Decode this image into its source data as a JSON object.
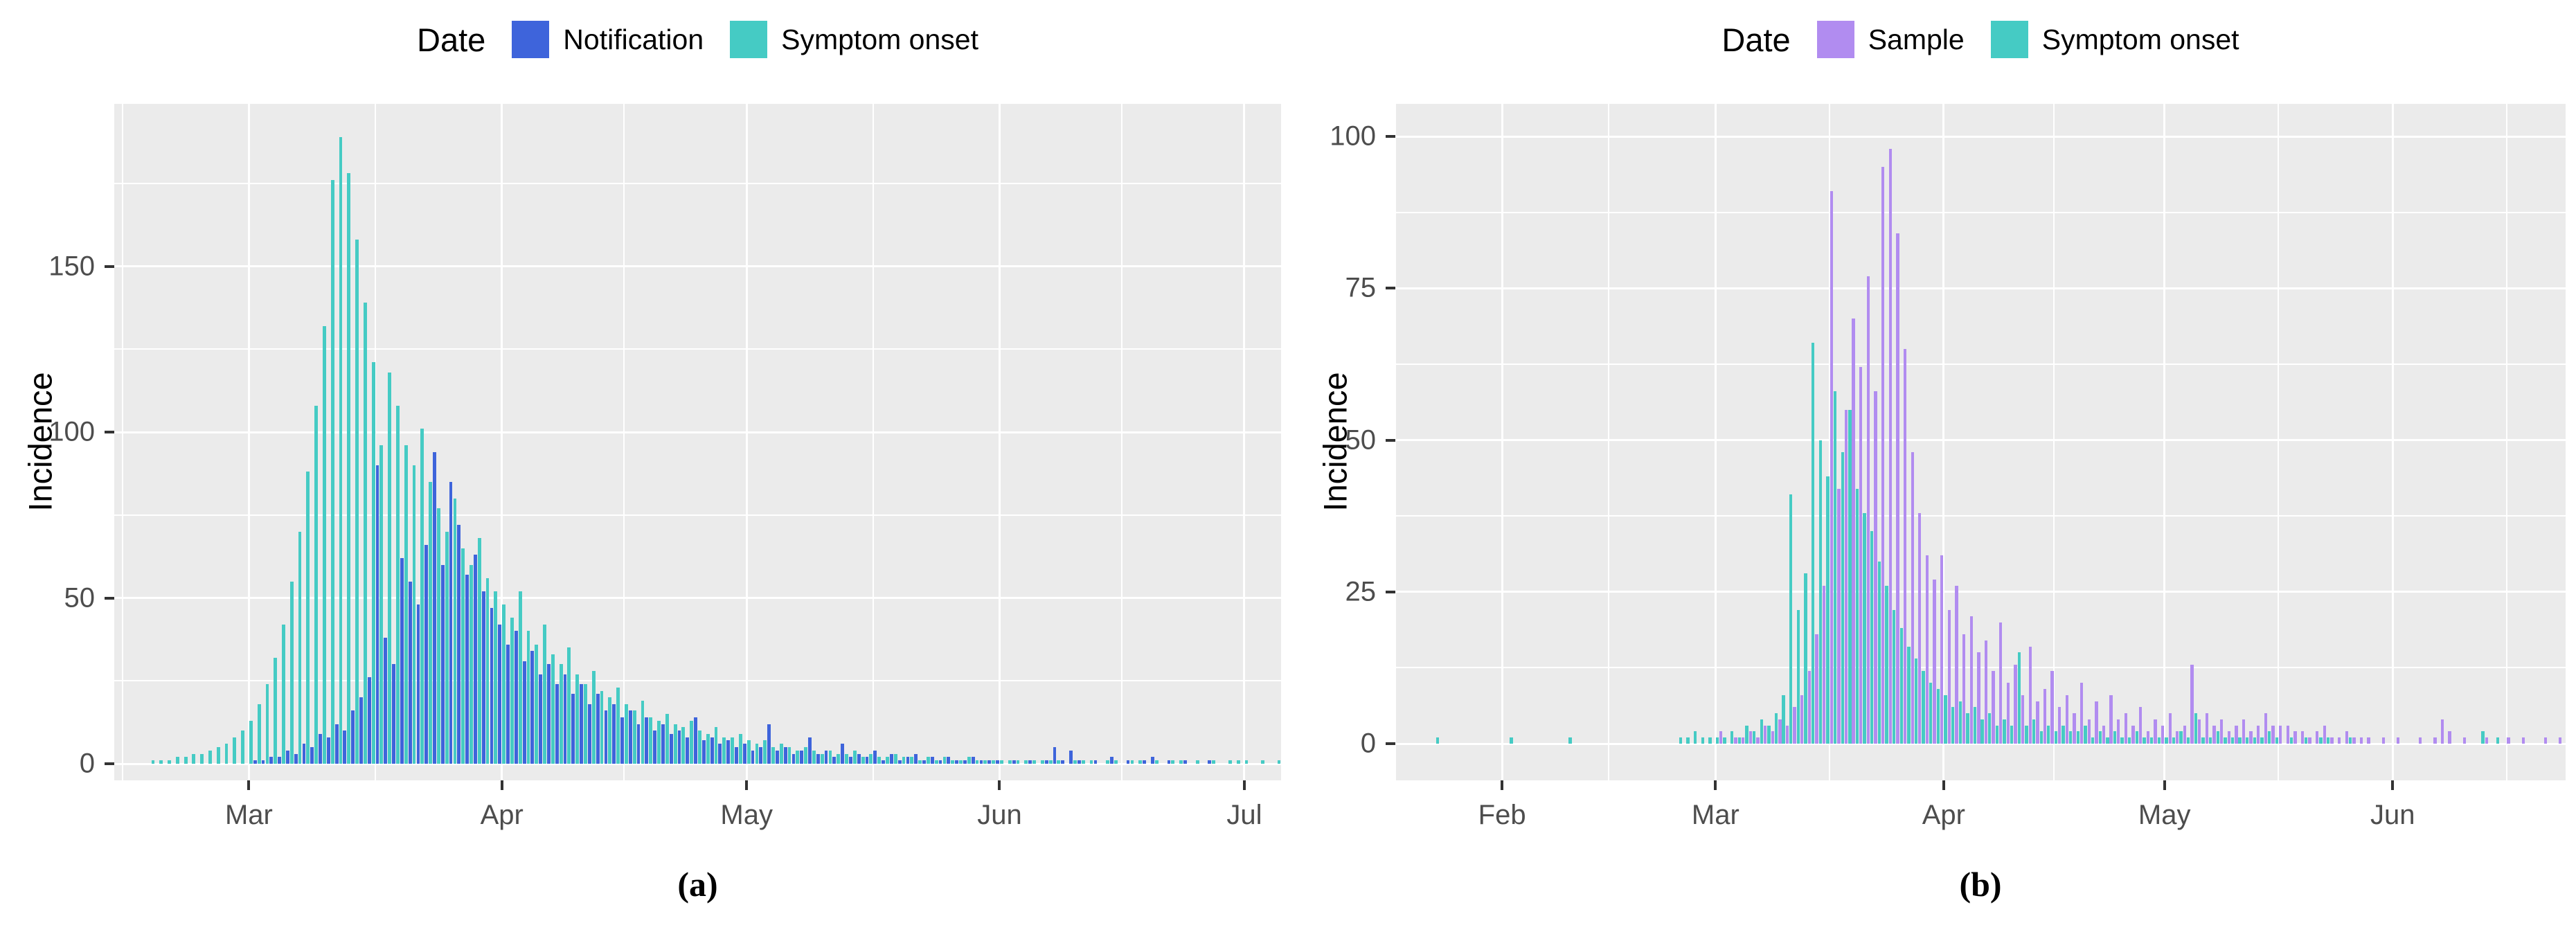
{
  "figure": {
    "background": "#ffffff",
    "panel_background": "#EBEBEB",
    "gridline_color": "#FFFFFF",
    "tick_label_color": "#4D4D4D",
    "tick_mark_color": "#333333"
  },
  "chart_data": [
    {
      "type": "bar",
      "panel": "a",
      "caption": "(a)",
      "title": "",
      "legend_title": "Date",
      "legend_position": "top",
      "xlabel": "",
      "ylabel": "Incidence",
      "ylim": [
        0,
        199
      ],
      "y_ticks": [
        0,
        50,
        100,
        150
      ],
      "y_tick_labels": [
        "0",
        "50",
        "100",
        "150"
      ],
      "y_minor_ticks": [
        25,
        75,
        125,
        175
      ],
      "grid": "on",
      "bar_mode": "dodge",
      "x_start_date": "Feb 14",
      "n_days": 143,
      "x_ticks": [
        {
          "label": "Mar",
          "day_index": 16
        },
        {
          "label": "Apr",
          "day_index": 47
        },
        {
          "label": "May",
          "day_index": 77
        },
        {
          "label": "Jun",
          "day_index": 108
        },
        {
          "label": "Jul",
          "day_index": 138
        }
      ],
      "x_minor_days": [
        0.5,
        31.5,
        62,
        92.5,
        123
      ],
      "series": [
        {
          "name": "Notification",
          "color": "#3E64DB",
          "values": [
            0,
            0,
            0,
            0,
            0,
            0,
            0,
            0,
            0,
            0,
            0,
            0,
            0,
            0,
            0,
            0,
            0,
            1,
            1,
            2,
            2,
            4,
            3,
            6,
            5,
            9,
            8,
            12,
            10,
            16,
            20,
            26,
            90,
            38,
            30,
            62,
            55,
            48,
            66,
            94,
            60,
            85,
            72,
            57,
            63,
            52,
            47,
            42,
            36,
            40,
            31,
            34,
            27,
            30,
            24,
            27,
            21,
            24,
            18,
            21,
            16,
            18,
            14,
            16,
            12,
            14,
            10,
            12,
            9,
            10,
            8,
            14,
            7,
            8,
            6,
            7,
            5,
            6,
            4,
            5,
            12,
            4,
            5,
            3,
            4,
            8,
            3,
            4,
            2,
            6,
            2,
            3,
            2,
            4,
            1,
            3,
            1,
            2,
            3,
            1,
            2,
            1,
            2,
            1,
            1,
            2,
            1,
            1,
            1,
            0,
            1,
            0,
            1,
            0,
            1,
            5,
            1,
            4,
            1,
            0,
            1,
            0,
            2,
            0,
            1,
            0,
            1,
            2,
            0,
            1,
            0,
            1,
            0,
            0,
            1,
            0,
            0,
            0,
            0,
            0,
            0,
            0,
            0
          ]
        },
        {
          "name": "Symptom onset",
          "color": "#45CBC4",
          "values": [
            0,
            0,
            0,
            0,
            1,
            1,
            1,
            2,
            2,
            3,
            3,
            4,
            5,
            6,
            8,
            10,
            13,
            18,
            24,
            32,
            42,
            55,
            70,
            88,
            108,
            132,
            176,
            189,
            178,
            158,
            139,
            121,
            96,
            118,
            108,
            96,
            90,
            101,
            85,
            77,
            70,
            80,
            65,
            60,
            68,
            56,
            52,
            48,
            44,
            52,
            40,
            36,
            42,
            33,
            30,
            35,
            27,
            24,
            28,
            22,
            20,
            23,
            18,
            16,
            19,
            14,
            13,
            15,
            12,
            11,
            13,
            10,
            9,
            11,
            8,
            8,
            9,
            7,
            6,
            7,
            5,
            6,
            5,
            4,
            5,
            4,
            3,
            4,
            3,
            3,
            4,
            2,
            3,
            2,
            2,
            3,
            2,
            2,
            1,
            2,
            1,
            2,
            1,
            1,
            2,
            1,
            1,
            1,
            1,
            1,
            1,
            1,
            1,
            1,
            1,
            1,
            0,
            1,
            1,
            1,
            0,
            1,
            1,
            0,
            1,
            1,
            0,
            1,
            0,
            1,
            1,
            0,
            1,
            0,
            1,
            0,
            1,
            1,
            1,
            0,
            1,
            0,
            1
          ]
        }
      ]
    },
    {
      "type": "bar",
      "panel": "b",
      "caption": "(b)",
      "title": "",
      "legend_title": "Date",
      "legend_position": "top",
      "xlabel": "",
      "ylabel": "Incidence",
      "ylim": [
        0,
        105
      ],
      "y_ticks": [
        0,
        25,
        50,
        75,
        100
      ],
      "y_tick_labels": [
        "0",
        "25",
        "50",
        "75",
        "100"
      ],
      "y_minor_ticks": [
        12.5,
        37.5,
        62.5,
        87.5
      ],
      "grid": "on",
      "bar_mode": "dodge",
      "x_start_date": "Jan 18",
      "n_days": 159,
      "x_ticks": [
        {
          "label": "Feb",
          "day_index": 14
        },
        {
          "label": "Mar",
          "day_index": 43
        },
        {
          "label": "Apr",
          "day_index": 74
        },
        {
          "label": "May",
          "day_index": 104
        },
        {
          "label": "Jun",
          "day_index": 135
        }
      ],
      "x_minor_days": [
        -0.5,
        28.5,
        58.5,
        89,
        119.5,
        150.5
      ],
      "series": [
        {
          "name": "Sample",
          "color": "#B18CF0",
          "values": [
            0,
            0,
            0,
            0,
            0,
            0,
            0,
            0,
            0,
            0,
            0,
            0,
            0,
            0,
            0,
            0,
            0,
            0,
            0,
            0,
            0,
            0,
            0,
            0,
            0,
            0,
            0,
            0,
            0,
            0,
            0,
            0,
            0,
            0,
            0,
            0,
            0,
            0,
            0,
            0,
            0,
            0,
            0,
            0,
            2,
            0,
            1,
            1,
            2,
            1,
            3,
            2,
            4,
            3,
            6,
            8,
            12,
            18,
            26,
            91,
            42,
            55,
            70,
            62,
            77,
            58,
            95,
            98,
            84,
            65,
            48,
            38,
            31,
            27,
            31,
            22,
            26,
            18,
            21,
            15,
            17,
            12,
            20,
            10,
            13,
            8,
            16,
            7,
            9,
            12,
            6,
            8,
            5,
            10,
            4,
            7,
            3,
            8,
            4,
            5,
            3,
            6,
            2,
            4,
            3,
            5,
            2,
            3,
            13,
            4,
            5,
            3,
            4,
            2,
            3,
            4,
            2,
            3,
            5,
            3,
            3,
            3,
            2,
            2,
            1,
            2,
            3,
            1,
            1,
            2,
            1,
            1,
            1,
            0,
            1,
            0,
            1,
            0,
            0,
            1,
            0,
            1,
            4,
            2,
            0,
            1,
            0,
            0,
            1,
            0,
            0,
            1,
            0,
            1,
            0,
            0,
            1,
            0,
            1
          ]
        },
        {
          "name": "Symptom onset",
          "color": "#45CBC4",
          "values": [
            0,
            0,
            0,
            0,
            0,
            1,
            0,
            0,
            0,
            0,
            0,
            0,
            0,
            0,
            0,
            1,
            0,
            0,
            0,
            0,
            0,
            0,
            0,
            1,
            0,
            0,
            0,
            0,
            0,
            0,
            0,
            0,
            0,
            0,
            0,
            0,
            0,
            0,
            1,
            1,
            2,
            1,
            1,
            1,
            1,
            2,
            1,
            3,
            2,
            4,
            3,
            5,
            8,
            41,
            22,
            28,
            66,
            50,
            44,
            58,
            48,
            55,
            42,
            38,
            35,
            30,
            26,
            22,
            19,
            16,
            14,
            12,
            10,
            9,
            8,
            6,
            7,
            5,
            6,
            4,
            5,
            3,
            4,
            3,
            15,
            3,
            4,
            2,
            3,
            2,
            3,
            2,
            2,
            3,
            1,
            2,
            1,
            2,
            1,
            1,
            2,
            1,
            1,
            1,
            1,
            1,
            2,
            1,
            5,
            1,
            1,
            2,
            1,
            1,
            1,
            1,
            1,
            1,
            2,
            1,
            0,
            1,
            0,
            1,
            0,
            1,
            1,
            0,
            0,
            1,
            0,
            0,
            0,
            0,
            0,
            0,
            0,
            0,
            0,
            0,
            0,
            0,
            0,
            0,
            0,
            0,
            0,
            2,
            0,
            1,
            0,
            0,
            0,
            0,
            0,
            0,
            0,
            0,
            0
          ]
        }
      ]
    }
  ]
}
